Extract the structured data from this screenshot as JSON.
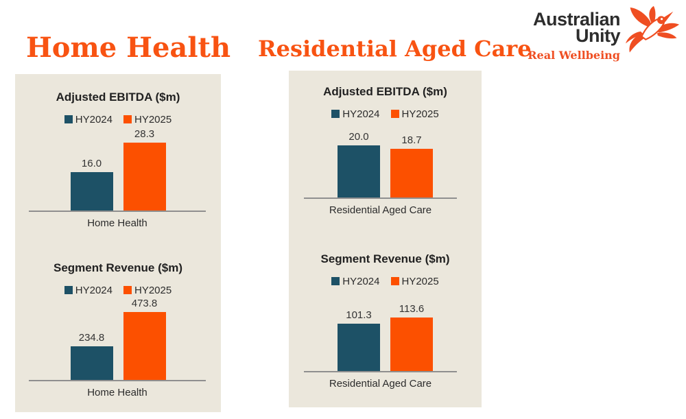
{
  "page": {
    "left_heading": "Home Health",
    "right_heading": "Residential Aged Care"
  },
  "logo": {
    "line1": "Australian",
    "line2": "Unity",
    "tagline": "Real Wellbeing",
    "bird_icon": "hummingbird-icon",
    "text_color": "#2d2d2d",
    "orange": "#ef4e22"
  },
  "colors": {
    "heading_orange": "#f85312",
    "panel_bg": "#ebe7dc",
    "series_hy2024": "#1d5166",
    "series_hy2025": "#fc5000",
    "axis_line": "#8f8f8f",
    "text_dark": "#212121"
  },
  "chart_data": [
    {
      "type": "bar",
      "panel": "Home Health",
      "title": "Adjusted EBITDA ($m)",
      "categories": [
        "Home Health"
      ],
      "series": [
        {
          "name": "HY2024",
          "values": [
            16.0
          ],
          "color": "#1d5166"
        },
        {
          "name": "HY2025",
          "values": [
            28.3
          ],
          "color": "#fc5000"
        }
      ],
      "ylim": [
        0,
        30
      ],
      "grid": false,
      "legend_position": "top",
      "data_labels": true
    },
    {
      "type": "bar",
      "panel": "Home Health",
      "title": "Segment Revenue ($m)",
      "categories": [
        "Home Health"
      ],
      "series": [
        {
          "name": "HY2024",
          "values": [
            234.8
          ],
          "color": "#1d5166"
        },
        {
          "name": "HY2025",
          "values": [
            473.8
          ],
          "color": "#fc5000"
        }
      ],
      "ylim": [
        0,
        500
      ],
      "grid": false,
      "legend_position": "top",
      "data_labels": true
    },
    {
      "type": "bar",
      "panel": "Residential Aged Care",
      "title": "Adjusted EBITDA ($m)",
      "categories": [
        "Residential Aged Care"
      ],
      "series": [
        {
          "name": "HY2024",
          "values": [
            20.0
          ],
          "color": "#1d5166"
        },
        {
          "name": "HY2025",
          "values": [
            18.7
          ],
          "color": "#fc5000"
        }
      ],
      "ylim": [
        0,
        25
      ],
      "grid": false,
      "legend_position": "top",
      "data_labels": true
    },
    {
      "type": "bar",
      "panel": "Residential Aged Care",
      "title": "Segment Revenue ($m)",
      "categories": [
        "Residential Aged Care"
      ],
      "series": [
        {
          "name": "HY2024",
          "values": [
            101.3
          ],
          "color": "#1d5166"
        },
        {
          "name": "HY2025",
          "values": [
            113.6
          ],
          "color": "#fc5000"
        }
      ],
      "ylim": [
        0,
        140
      ],
      "grid": false,
      "legend_position": "top",
      "data_labels": true
    }
  ]
}
